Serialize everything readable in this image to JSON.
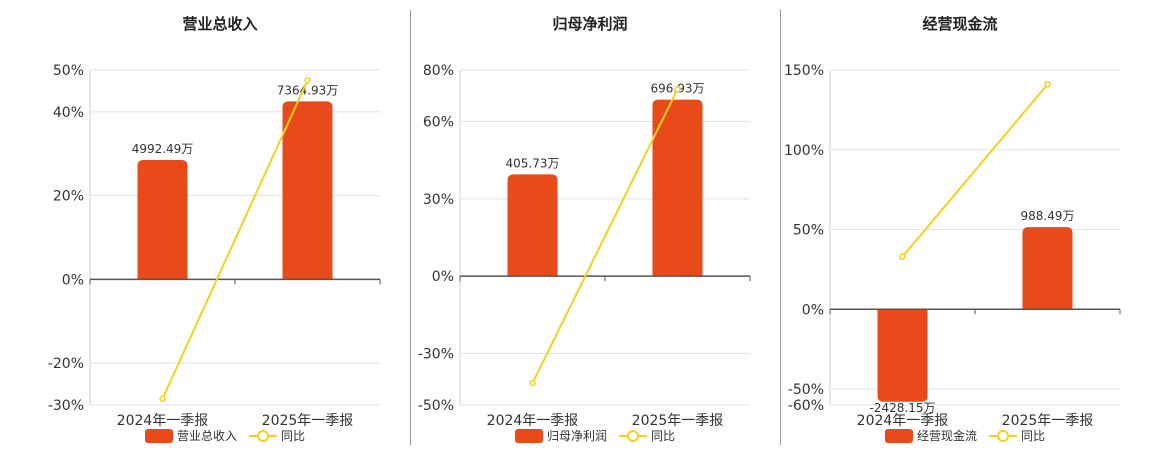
{
  "chart_data": [
    {
      "type": "bar",
      "title": "营业总收入",
      "categories": [
        "2024年一季报",
        "2025年一季报"
      ],
      "series": [
        {
          "name": "营业总收入",
          "type": "bar",
          "values": [
            28.5,
            42.5
          ],
          "labels": [
            "4992.49万",
            "7364.93万"
          ]
        },
        {
          "name": "同比",
          "type": "line",
          "values": [
            -28.5,
            47.5
          ]
        }
      ],
      "y_ticks": [
        "50%",
        "40%",
        "20%",
        "0%",
        "-20%",
        "-30%"
      ],
      "ylim": [
        -30,
        50
      ],
      "grid": true,
      "legend_position": "bottom",
      "colors": {
        "bar": "#e84a1a",
        "line": "#f2d21e"
      }
    },
    {
      "type": "bar",
      "title": "归母净利润",
      "categories": [
        "2024年一季报",
        "2025年一季报"
      ],
      "series": [
        {
          "name": "归母净利润",
          "type": "bar",
          "values": [
            39.5,
            68.5
          ],
          "labels": [
            "405.73万",
            "696.93万"
          ]
        },
        {
          "name": "同比",
          "type": "line",
          "values": [
            -41.5,
            72.5
          ]
        }
      ],
      "y_ticks": [
        "80%",
        "60%",
        "30%",
        "0%",
        "-30%",
        "-50%"
      ],
      "ylim": [
        -50,
        80
      ],
      "grid": true,
      "legend_position": "bottom",
      "colors": {
        "bar": "#e84a1a",
        "line": "#f2d21e"
      }
    },
    {
      "type": "bar",
      "title": "经营现金流",
      "categories": [
        "2024年一季报",
        "2025年一季报"
      ],
      "series": [
        {
          "name": "经营现金流",
          "type": "bar",
          "values": [
            -58,
            51.5
          ],
          "labels": [
            "-2428.15万",
            "988.49万"
          ]
        },
        {
          "name": "同比",
          "type": "line",
          "values": [
            33,
            141
          ]
        }
      ],
      "y_ticks": [
        "150%",
        "100%",
        "50%",
        "0%",
        "-50%",
        "-60%"
      ],
      "ylim": [
        -60,
        150
      ],
      "grid": true,
      "legend_position": "bottom",
      "colors": {
        "bar": "#e84a1a",
        "line": "#f2d21e"
      }
    }
  ]
}
